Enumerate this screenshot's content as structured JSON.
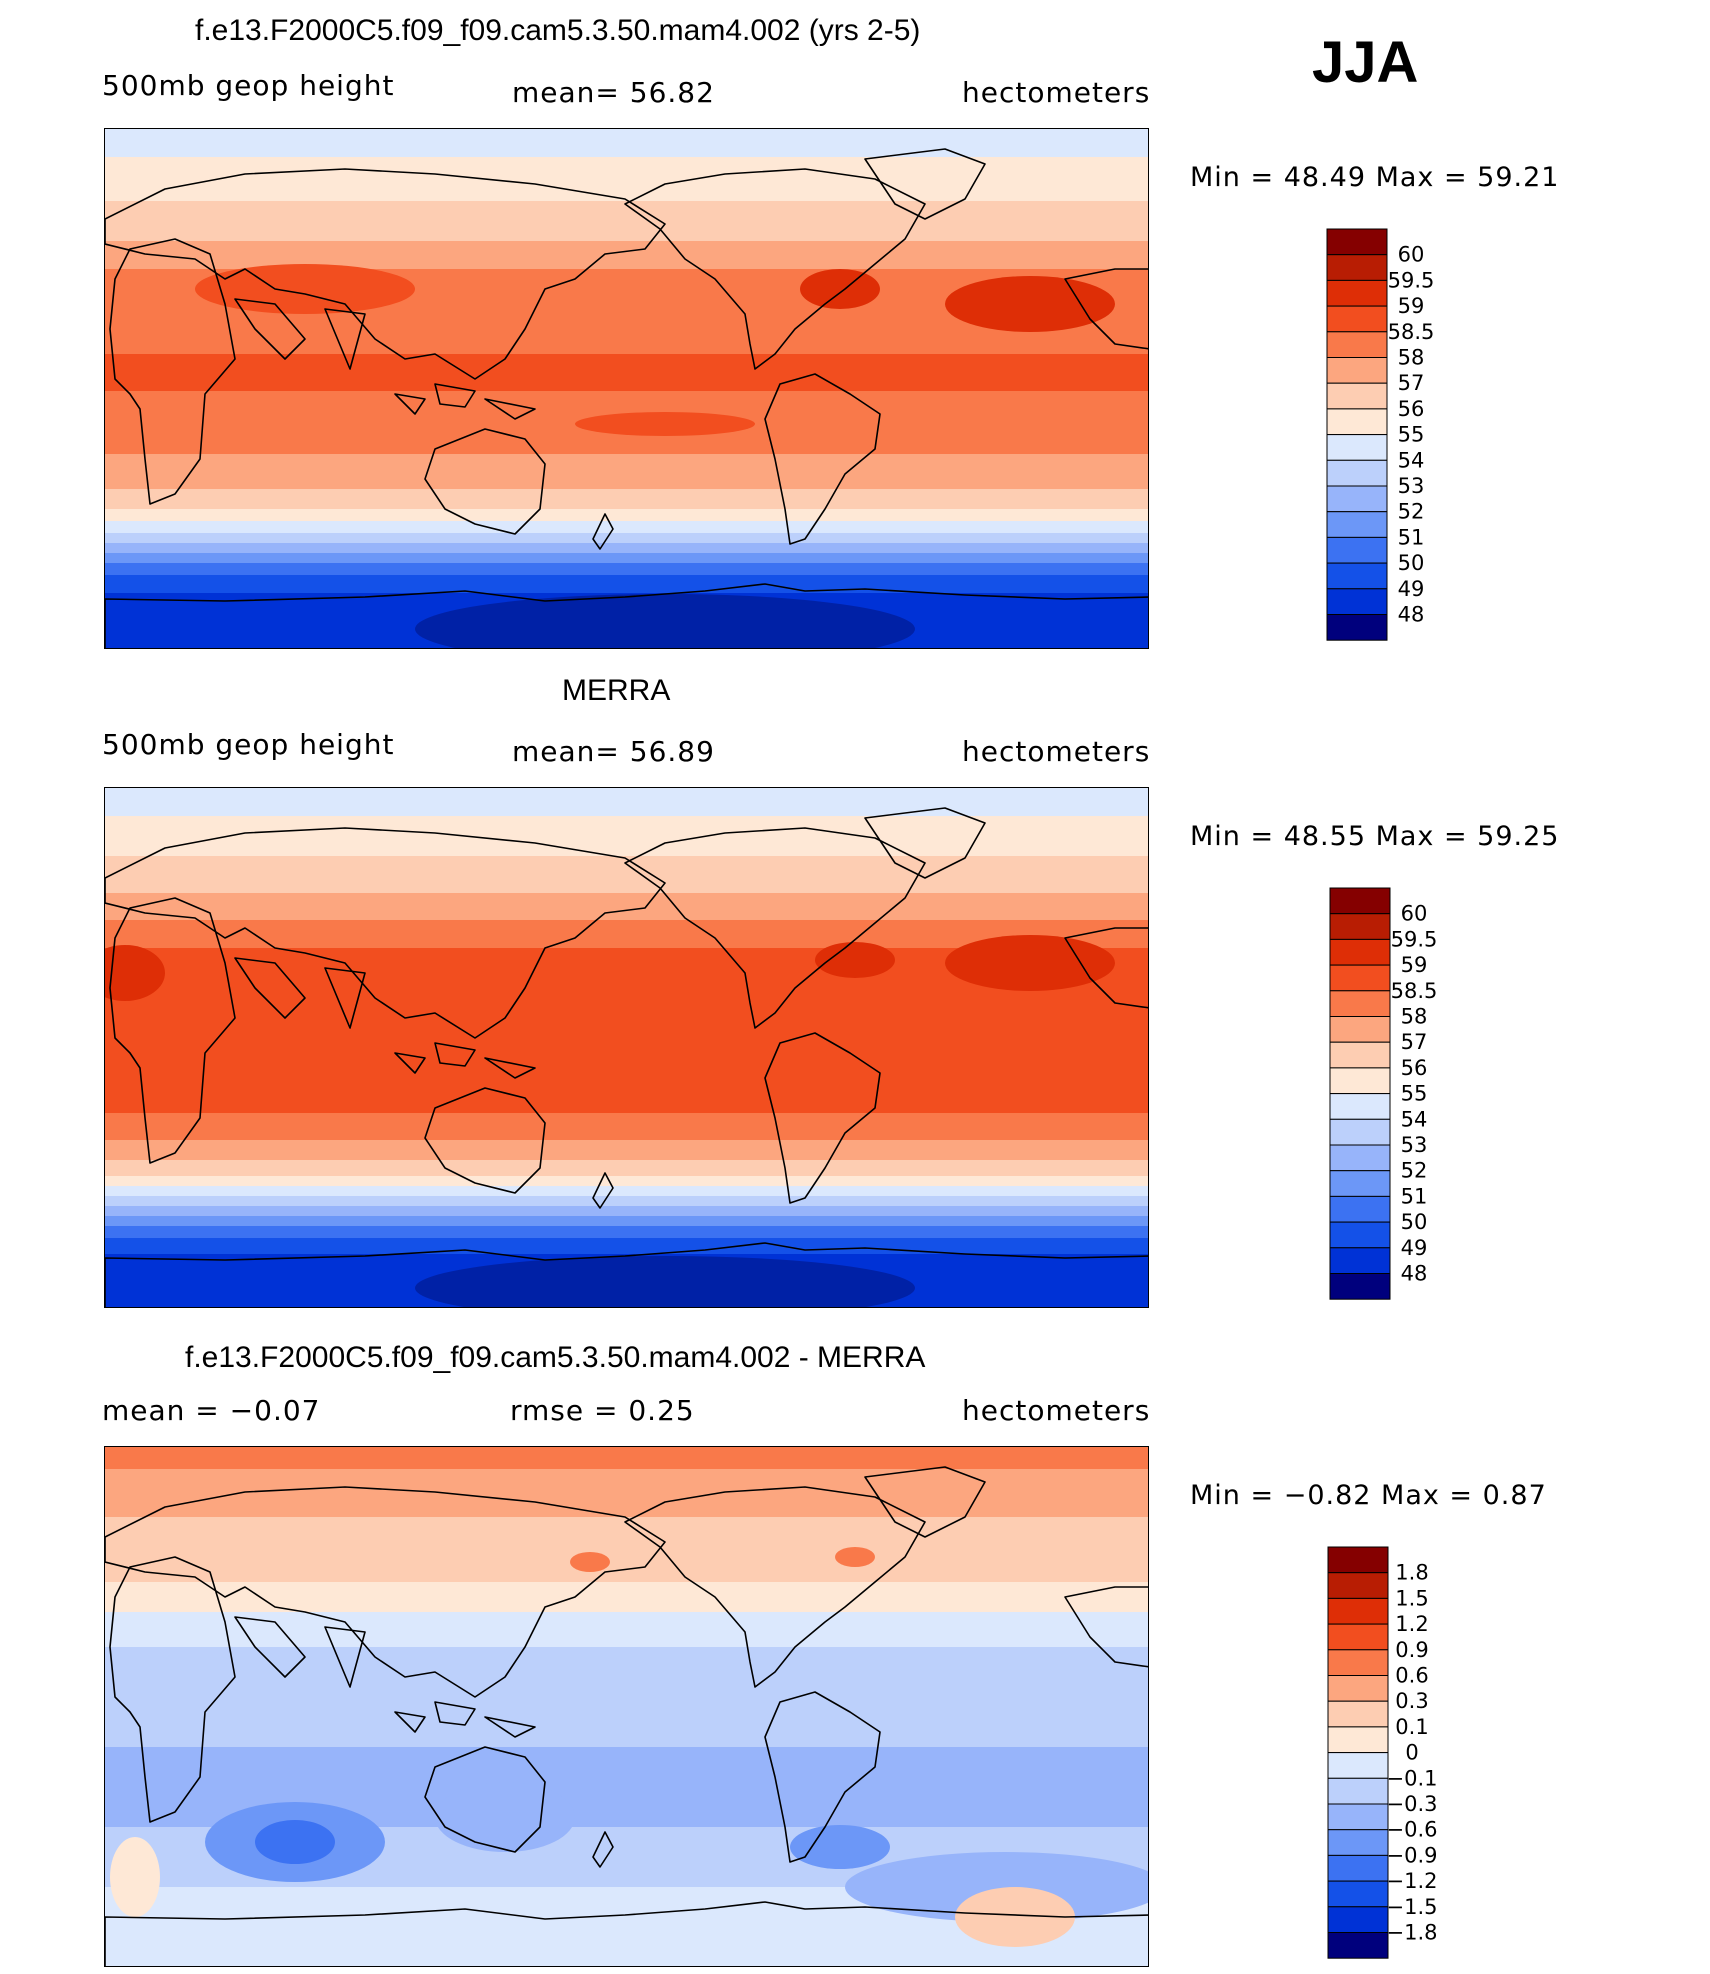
{
  "figure": {
    "season": "JJA",
    "panels": [
      {
        "id": "model",
        "title": "f.e13.F2000C5.f09_f09.cam5.3.50.mam4.002 (yrs 2-5)",
        "left_label": "500mb geop height",
        "center_label": "mean=   56.82",
        "right_label": "hectometers",
        "minmax_label": "Min =   48.49  Max =   59.21",
        "min": 48.49,
        "max": 59.21,
        "colorbar_levels": [
          "60",
          "59.5",
          "59",
          "58.5",
          "58",
          "57",
          "56",
          "55",
          "54",
          "53",
          "52",
          "51",
          "50",
          "49",
          "48"
        ]
      },
      {
        "id": "obs",
        "title": "MERRA",
        "left_label": "500mb geop height",
        "center_label": "mean=   56.89",
        "right_label": "hectometers",
        "minmax_label": "Min =   48.55  Max =   59.25",
        "min": 48.55,
        "max": 59.25,
        "colorbar_levels": [
          "60",
          "59.5",
          "59",
          "58.5",
          "58",
          "57",
          "56",
          "55",
          "54",
          "53",
          "52",
          "51",
          "50",
          "49",
          "48"
        ]
      },
      {
        "id": "diff",
        "title": "f.e13.F2000C5.f09_f09.cam5.3.50.mam4.002 - MERRA",
        "left_label": "mean =    −0.07",
        "center_label": "rmse =     0.25",
        "right_label": "hectometers",
        "minmax_label": "Min =   −0.82  Max =     0.87",
        "min": -0.82,
        "max": 0.87,
        "colorbar_levels": [
          "1.8",
          "1.5",
          "1.2",
          "0.9",
          "0.6",
          "0.3",
          "0.1",
          "0",
          "−0.1",
          "−0.3",
          "−0.6",
          "−0.9",
          "−1.2",
          "−1.5",
          "−1.8"
        ]
      }
    ],
    "colors": {
      "palette": [
        "#00007d",
        "#0021a6",
        "#0032d6",
        "#1451e8",
        "#3c72f2",
        "#6c97f7",
        "#97b4fa",
        "#bcd0fb",
        "#dbe8fd",
        "#fee8d6",
        "#fdcdb2",
        "#fca67f",
        "#f9794a",
        "#f24e1f",
        "#de2e06",
        "#b81d03",
        "#850000"
      ]
    }
  }
}
